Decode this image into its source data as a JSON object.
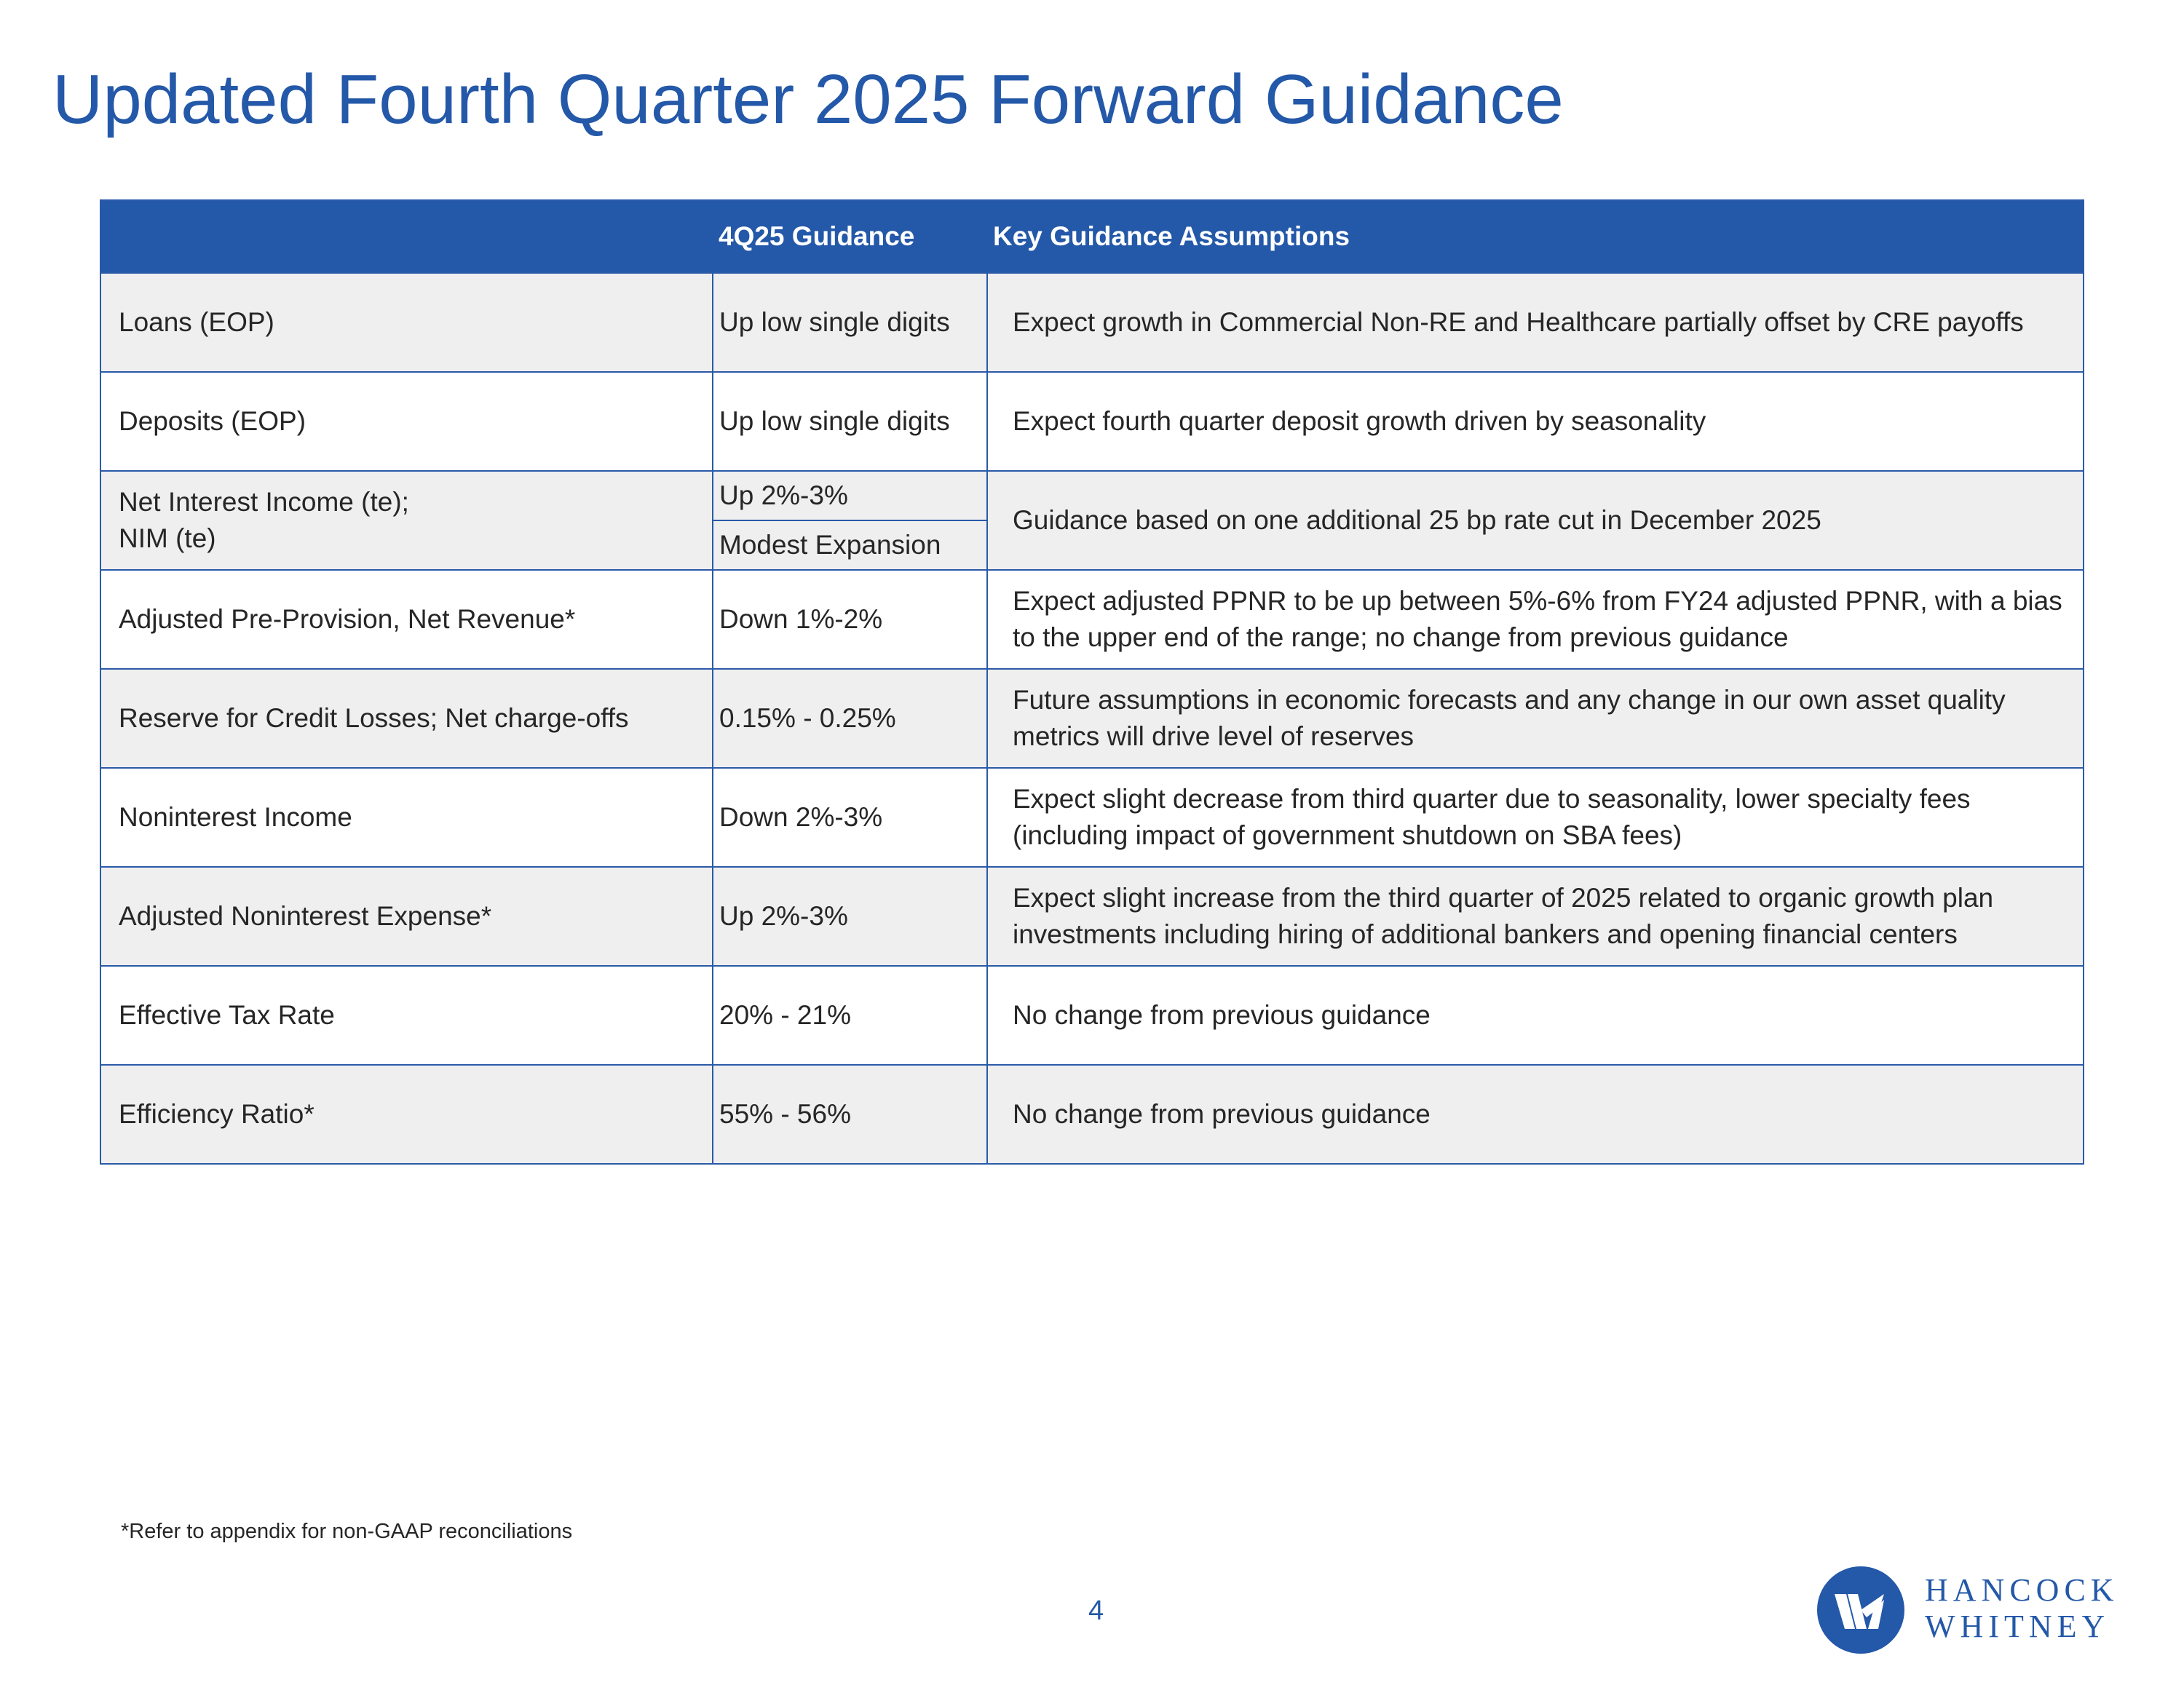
{
  "title": "Updated Fourth Quarter 2025 Forward Guidance",
  "table": {
    "headers": [
      "",
      "4Q25 Guidance",
      "Key Guidance Assumptions"
    ],
    "rows": [
      {
        "metric": "Loans (EOP)",
        "guidance": "Up low single digits",
        "assumption": "Expect growth in Commercial Non-RE and Healthcare partially offset by CRE payoffs"
      },
      {
        "metric": "Deposits (EOP)",
        "guidance": "Up low single digits",
        "assumption": "Expect fourth quarter deposit growth driven by seasonality"
      },
      {
        "metric_line1": "Net Interest Income (te);",
        "metric_line2": "NIM (te)",
        "guidance_1": "Up 2%-3%",
        "guidance_2": "Modest Expansion",
        "assumption": "Guidance based on one additional 25 bp rate cut in December 2025"
      },
      {
        "metric": "Adjusted Pre-Provision, Net Revenue*",
        "guidance": "Down 1%-2%",
        "assumption": "Expect adjusted PPNR to be up between 5%-6% from FY24 adjusted PPNR, with  a bias to the upper end of the range; no change from previous guidance"
      },
      {
        "metric": "Reserve for Credit Losses; Net charge-offs",
        "guidance": "0.15% - 0.25%",
        "assumption": "Future assumptions in economic forecasts and any change in our own asset quality metrics will drive level of reserves"
      },
      {
        "metric": "Noninterest Income",
        "guidance": "Down 2%-3%",
        "assumption": "Expect slight decrease from third quarter due to seasonality, lower specialty fees (including impact of government shutdown on SBA fees)"
      },
      {
        "metric": "Adjusted Noninterest Expense*",
        "guidance": "Up 2%-3%",
        "assumption": "Expect slight increase from the third quarter of 2025 related to organic growth plan investments including hiring of additional bankers and opening financial centers"
      },
      {
        "metric": "Effective Tax Rate",
        "guidance": "20% - 21%",
        "assumption": "No change from previous guidance"
      },
      {
        "metric": "Efficiency Ratio*",
        "guidance": "55% - 56%",
        "assumption": "No change from previous guidance"
      }
    ]
  },
  "footnote": "*Refer to appendix for non-GAAP reconciliations",
  "page_number": "4",
  "logo": {
    "line1": "HANCOCK",
    "line2": "WHITNEY",
    "icon": "hancock-whitney-logo-icon"
  },
  "colors": {
    "brand_blue": "#2458a8",
    "row_shade": "#efefef"
  }
}
